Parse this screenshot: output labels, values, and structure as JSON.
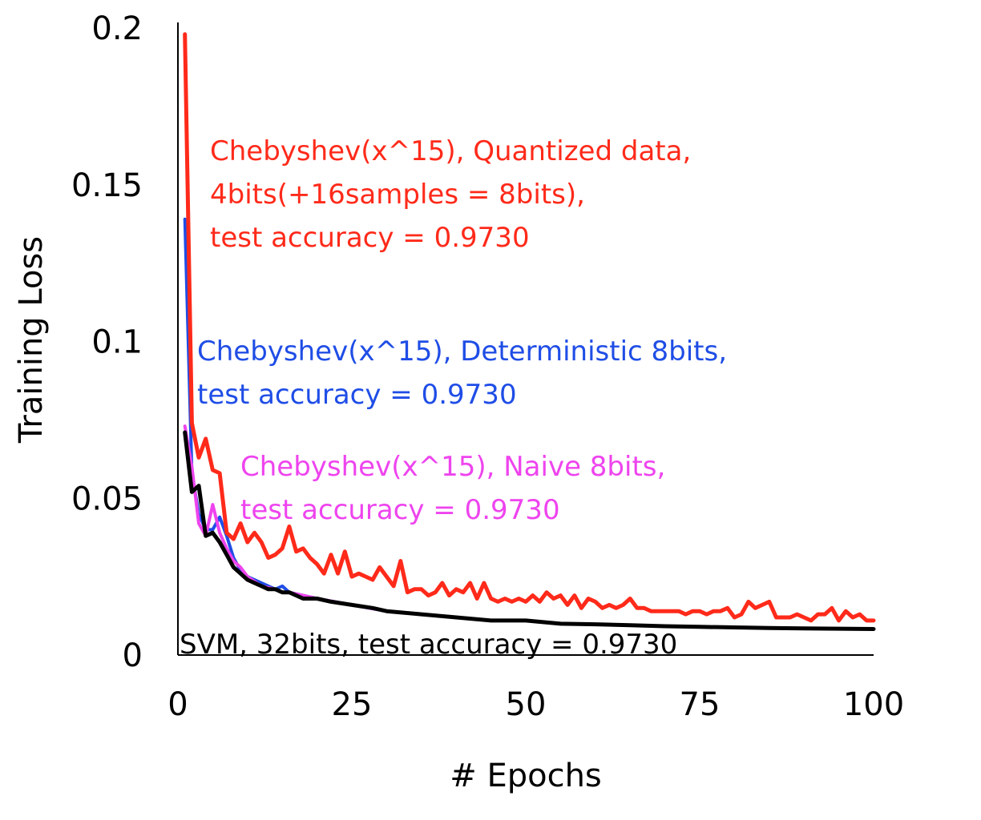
{
  "chart_data": {
    "type": "line",
    "title": "",
    "xlabel": "# Epochs",
    "ylabel": "Training Loss",
    "xlim": [
      0,
      100
    ],
    "ylim": [
      0,
      0.2
    ],
    "xticks": [
      "0",
      "25",
      "50",
      "75",
      "100"
    ],
    "yticks": [
      "0",
      "0.05",
      "0.1",
      "0.15",
      "0.2"
    ],
    "grid": false,
    "legend": "none",
    "series": [
      {
        "key": "red",
        "color": "#ff2a1a",
        "annotation": [
          "Chebyshev(x^15), Quantized data,",
          "4bits(+16samples = 8bits),",
          "test accuracy = 0.9730"
        ],
        "x": [
          1,
          2,
          3,
          4,
          5,
          6,
          7,
          8,
          9,
          10,
          11,
          12,
          13,
          14,
          15,
          16,
          17,
          18,
          19,
          20,
          21,
          22,
          23,
          24,
          25,
          26,
          27,
          28,
          29,
          30,
          31,
          32,
          33,
          34,
          35,
          36,
          37,
          38,
          39,
          40,
          41,
          42,
          43,
          44,
          45,
          46,
          47,
          48,
          49,
          50,
          51,
          52,
          53,
          54,
          55,
          56,
          57,
          58,
          59,
          60,
          61,
          62,
          63,
          64,
          65,
          66,
          67,
          68,
          69,
          70,
          71,
          72,
          73,
          74,
          75,
          76,
          77,
          78,
          79,
          80,
          81,
          82,
          83,
          84,
          85,
          86,
          87,
          88,
          89,
          90,
          91,
          92,
          93,
          94,
          95,
          96,
          97,
          98,
          99,
          100
        ],
        "y": [
          0.198,
          0.074,
          0.063,
          0.069,
          0.059,
          0.058,
          0.039,
          0.037,
          0.042,
          0.036,
          0.039,
          0.036,
          0.031,
          0.032,
          0.034,
          0.041,
          0.033,
          0.034,
          0.031,
          0.029,
          0.026,
          0.032,
          0.026,
          0.033,
          0.025,
          0.026,
          0.025,
          0.024,
          0.028,
          0.025,
          0.022,
          0.03,
          0.02,
          0.021,
          0.021,
          0.019,
          0.02,
          0.023,
          0.019,
          0.021,
          0.02,
          0.023,
          0.018,
          0.023,
          0.018,
          0.017,
          0.018,
          0.017,
          0.018,
          0.017,
          0.019,
          0.017,
          0.02,
          0.018,
          0.019,
          0.016,
          0.019,
          0.015,
          0.018,
          0.017,
          0.015,
          0.016,
          0.015,
          0.016,
          0.018,
          0.015,
          0.015,
          0.014,
          0.014,
          0.014,
          0.014,
          0.014,
          0.013,
          0.014,
          0.014,
          0.013,
          0.014,
          0.014,
          0.015,
          0.012,
          0.013,
          0.017,
          0.015,
          0.016,
          0.017,
          0.012,
          0.012,
          0.012,
          0.013,
          0.012,
          0.011,
          0.013,
          0.013,
          0.015,
          0.011,
          0.014,
          0.012,
          0.013,
          0.011,
          0.011
        ]
      },
      {
        "key": "blue",
        "color": "#1f4de6",
        "annotation": [
          "Chebyshev(x^15), Deterministic 8bits,",
          "test accuracy = 0.9730"
        ],
        "x": [
          1,
          2,
          3,
          4,
          5,
          6,
          7,
          8,
          9,
          10,
          12,
          14,
          15,
          16,
          18,
          20,
          25,
          30,
          35,
          40,
          45,
          50,
          55,
          60,
          65,
          70,
          75,
          80,
          85,
          90,
          95,
          100
        ],
        "y": [
          0.139,
          0.058,
          0.045,
          0.04,
          0.04,
          0.044,
          0.038,
          0.031,
          0.027,
          0.025,
          0.023,
          0.021,
          0.022,
          0.02,
          0.019,
          0.018,
          0.016,
          0.014,
          0.013,
          0.012,
          0.011,
          0.011,
          0.01,
          0.0098,
          0.0095,
          0.0092,
          0.009,
          0.0088,
          0.0086,
          0.0085,
          0.0084,
          0.0083
        ]
      },
      {
        "key": "magenta",
        "color": "#ee44ee",
        "annotation": [
          "Chebyshev(x^15), Naive 8bits,",
          "test accuracy = 0.9730"
        ],
        "x": [
          1,
          2,
          3,
          4,
          5,
          6,
          7,
          8,
          9,
          10,
          12,
          14,
          15,
          16,
          18,
          20,
          25,
          30,
          35,
          40,
          45,
          50,
          55,
          60,
          65,
          70,
          75,
          80,
          85,
          90,
          95,
          100
        ],
        "y": [
          0.073,
          0.06,
          0.042,
          0.038,
          0.048,
          0.039,
          0.034,
          0.03,
          0.028,
          0.025,
          0.022,
          0.021,
          0.02,
          0.02,
          0.019,
          0.018,
          0.016,
          0.014,
          0.013,
          0.012,
          0.011,
          0.011,
          0.01,
          0.0098,
          0.0095,
          0.0092,
          0.009,
          0.0088,
          0.0086,
          0.0085,
          0.0084,
          0.0083
        ]
      },
      {
        "key": "black",
        "color": "#000000",
        "annotation": [
          "SVM, 32bits, test accuracy = 0.9730"
        ],
        "x": [
          1,
          2,
          3,
          4,
          5,
          6,
          7,
          8,
          9,
          10,
          11,
          12,
          13,
          14,
          15,
          16,
          17,
          18,
          19,
          20,
          22,
          25,
          28,
          30,
          35,
          40,
          45,
          50,
          55,
          60,
          65,
          70,
          75,
          80,
          85,
          90,
          95,
          100
        ],
        "y": [
          0.071,
          0.052,
          0.054,
          0.038,
          0.039,
          0.036,
          0.032,
          0.028,
          0.026,
          0.024,
          0.023,
          0.022,
          0.021,
          0.021,
          0.02,
          0.02,
          0.019,
          0.018,
          0.018,
          0.018,
          0.017,
          0.016,
          0.015,
          0.014,
          0.013,
          0.012,
          0.011,
          0.011,
          0.01,
          0.0098,
          0.0095,
          0.0092,
          0.009,
          0.0088,
          0.0086,
          0.0085,
          0.0084,
          0.0083
        ]
      }
    ]
  }
}
